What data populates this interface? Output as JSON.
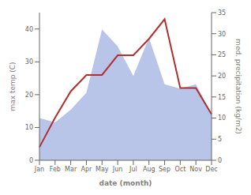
{
  "chart_data": {
    "type": "line",
    "categories": [
      "Jan",
      "Feb",
      "Mar",
      "Apr",
      "May",
      "Jun",
      "Jul",
      "Aug",
      "Sep",
      "Oct",
      "Nov",
      "Dec"
    ],
    "xlabel": "date (month)",
    "ylabel": "max temp (C)",
    "y2label": "med. precipitation (kg/m2)",
    "ylim": [
      0,
      45
    ],
    "yticks": [
      0,
      10,
      20,
      30,
      40
    ],
    "y2lim": [
      0,
      35
    ],
    "y2ticks": [
      0,
      5,
      10,
      15,
      20,
      25,
      30,
      35
    ],
    "series": [
      {
        "type": "area",
        "axis": "y2",
        "color": "#b8c4e8",
        "values": [
          10,
          9,
          12,
          16,
          31,
          27,
          20,
          29,
          18,
          17,
          18,
          11
        ]
      },
      {
        "type": "line",
        "color": "#b03030",
        "values": [
          4,
          13,
          21,
          26,
          26,
          32,
          32,
          37,
          43,
          22,
          22,
          14
        ]
      }
    ]
  }
}
